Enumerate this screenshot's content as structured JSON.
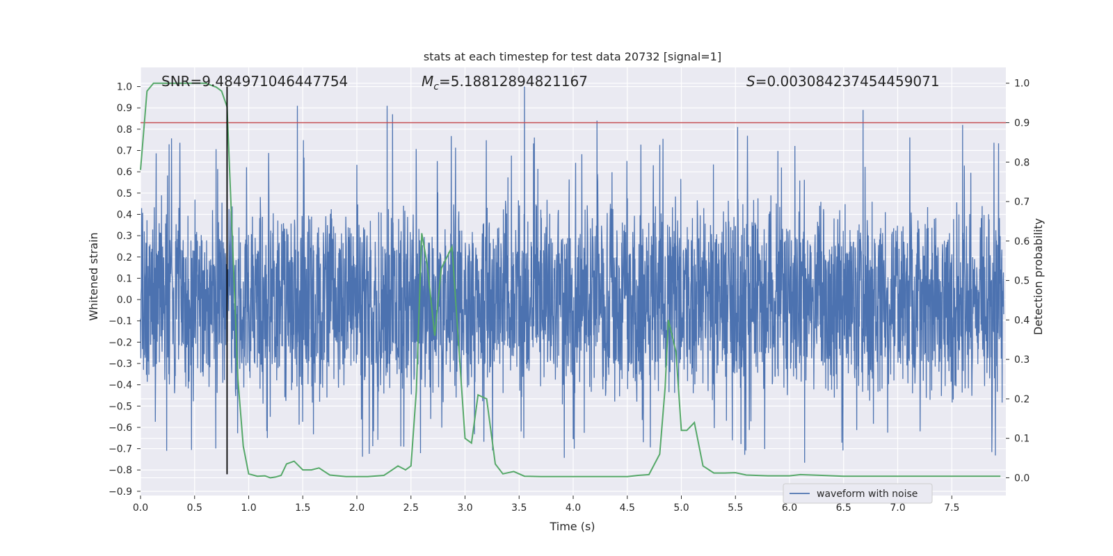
{
  "chart_data": {
    "type": "line",
    "title": "stats at each timestep for test data 20732 [signal=1]",
    "xlabel": "Time (s)",
    "ylabel": "Whitened strain",
    "y2label": "Detection probability",
    "xlim": [
      0.0,
      8.0
    ],
    "ylim": [
      -0.92,
      1.09
    ],
    "y2lim": [
      -0.045,
      1.04
    ],
    "x_ticks": [
      "0.0",
      "0.5",
      "1.0",
      "1.5",
      "2.0",
      "2.5",
      "3.0",
      "3.5",
      "4.0",
      "4.5",
      "5.0",
      "5.5",
      "6.0",
      "6.5",
      "7.0",
      "7.5"
    ],
    "y_ticks": [
      "1.0",
      "0.9",
      "0.8",
      "0.7",
      "0.6",
      "0.5",
      "0.4",
      "0.3",
      "0.2",
      "0.1",
      "0.0",
      "−0.1",
      "−0.2",
      "−0.3",
      "−0.4",
      "−0.5",
      "−0.6",
      "−0.7",
      "−0.8",
      "−0.9"
    ],
    "y2_ticks": [
      "1.0",
      "0.9",
      "0.8",
      "0.7",
      "0.6",
      "0.5",
      "0.4",
      "0.3",
      "0.2",
      "0.1",
      "0.0"
    ],
    "grid": true,
    "legend": {
      "position": "bottom-right",
      "entries": [
        "waveform with noise"
      ]
    },
    "annotations": {
      "snr": "SNR=9.484971046447754",
      "mc_label": "M",
      "mc_sub": "c",
      "mc_value": "=5.18812894821167",
      "s_label": "S",
      "s_value": "=0.003084237454459071"
    },
    "threshold_y2": 0.9,
    "marker_x": 0.8,
    "marker_y": [
      -0.82,
      1.0
    ],
    "series": [
      {
        "name": "waveform with noise",
        "color": "#4c72b0",
        "style": "dense noisy oscillation, typical amplitude ±0.45, peaks near ±0.7",
        "spikes_x": [
          0.8,
          1.45,
          2.28,
          2.33,
          3.55,
          4.22,
          5.52,
          6.68,
          7.6
        ],
        "spikes_y": [
          0.92,
          0.91,
          0.91,
          0.87,
          1.0,
          0.84,
          0.81,
          0.89,
          0.82
        ]
      },
      {
        "name": "",
        "color": "#55a868",
        "axis": "y2",
        "x": [
          0.0,
          0.06,
          0.12,
          0.2,
          0.3,
          0.4,
          0.5,
          0.6,
          0.7,
          0.75,
          0.8,
          0.85,
          0.9,
          0.95,
          1.0,
          1.08,
          1.15,
          1.2,
          1.25,
          1.3,
          1.35,
          1.42,
          1.5,
          1.58,
          1.65,
          1.75,
          1.9,
          2.0,
          2.1,
          2.25,
          2.3,
          2.38,
          2.45,
          2.5,
          2.55,
          2.6,
          2.65,
          2.72,
          2.78,
          2.88,
          3.0,
          3.06,
          3.12,
          3.2,
          3.28,
          3.35,
          3.45,
          3.55,
          3.7,
          3.9,
          4.2,
          4.5,
          4.6,
          4.7,
          4.8,
          4.85,
          4.88,
          4.95,
          5.0,
          5.05,
          5.12,
          5.2,
          5.3,
          5.4,
          5.5,
          5.6,
          5.8,
          6.0,
          6.1,
          6.3,
          6.5,
          6.7,
          6.9,
          7.1,
          7.3,
          7.5,
          7.7,
          7.95
        ],
        "y": [
          0.78,
          0.98,
          1.0,
          1.0,
          1.0,
          1.0,
          1.0,
          1.0,
          0.99,
          0.98,
          0.94,
          0.6,
          0.25,
          0.08,
          0.01,
          0.004,
          0.005,
          0.0,
          0.002,
          0.006,
          0.035,
          0.042,
          0.02,
          0.02,
          0.025,
          0.007,
          0.003,
          0.003,
          0.003,
          0.006,
          0.015,
          0.03,
          0.02,
          0.03,
          0.22,
          0.62,
          0.54,
          0.36,
          0.53,
          0.585,
          0.1,
          0.088,
          0.21,
          0.2,
          0.035,
          0.01,
          0.016,
          0.004,
          0.003,
          0.003,
          0.003,
          0.003,
          0.006,
          0.008,
          0.06,
          0.23,
          0.4,
          0.32,
          0.12,
          0.12,
          0.14,
          0.03,
          0.012,
          0.012,
          0.013,
          0.007,
          0.005,
          0.005,
          0.008,
          0.006,
          0.004,
          0.004,
          0.004,
          0.004,
          0.004,
          0.004,
          0.004,
          0.004
        ]
      }
    ]
  },
  "colors": {
    "plot_bg": "#eaeaf2",
    "grid": "#ffffff",
    "waveform": "#4c72b0",
    "probability": "#55a868",
    "threshold": "#c44e52",
    "marker": "#000000"
  }
}
